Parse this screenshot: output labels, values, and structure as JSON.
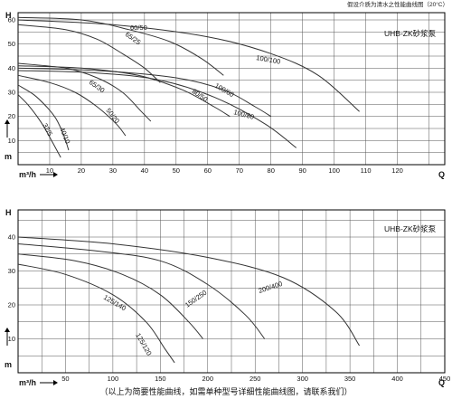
{
  "header_note": "假设介质为清水之性能曲线图（20°C）",
  "footnote": "（以上为简要性能曲线，如需单种型号详细性能曲线图，请联系我们）",
  "chart_data": [
    {
      "type": "line",
      "box_label": "UHB-ZK砂浆泵",
      "ylabel": "H",
      "yunit": "m",
      "xunit": "m³/h",
      "xlabel": "Q",
      "xlim": [
        0,
        135
      ],
      "ylim": [
        0,
        63
      ],
      "x_ticks": [
        10,
        20,
        30,
        40,
        50,
        60,
        70,
        80,
        90,
        100,
        110,
        120
      ],
      "y_ticks": [
        10,
        20,
        30,
        40,
        50,
        60
      ],
      "series": [
        {
          "name": "32/5",
          "x": [
            0,
            3,
            6,
            8.5,
            11,
            13.5
          ],
          "y": [
            29,
            25,
            20,
            15,
            9,
            3
          ]
        },
        {
          "name": "40/10",
          "x": [
            0,
            5,
            9,
            12,
            14.5,
            16
          ],
          "y": [
            33,
            29,
            24,
            19,
            12,
            6
          ]
        },
        {
          "name": "50/20",
          "x": [
            0,
            10,
            18,
            25,
            31,
            34
          ],
          "y": [
            37,
            34,
            30,
            24,
            17,
            12
          ]
        },
        {
          "name": "65/30",
          "x": [
            0,
            15,
            25,
            33,
            39,
            42
          ],
          "y": [
            42,
            40,
            36,
            30,
            22,
            18
          ]
        },
        {
          "name": "65/25",
          "x": [
            0,
            15,
            25,
            33,
            40,
            45
          ],
          "y": [
            58,
            56,
            52,
            46,
            40,
            34
          ]
        },
        {
          "name": "60/50",
          "x": [
            0,
            20,
            35,
            48,
            58,
            65
          ],
          "y": [
            61,
            60,
            56,
            51,
            44,
            37
          ]
        },
        {
          "name": "80/50",
          "x": [
            0,
            20,
            38,
            52,
            62,
            67
          ],
          "y": [
            41,
            40,
            37,
            31,
            24,
            20
          ]
        },
        {
          "name": "100/80",
          "x": [
            0,
            25,
            45,
            62,
            78,
            88
          ],
          "y": [
            39,
            38,
            35,
            28,
            17,
            7
          ]
        },
        {
          "name": "100/60",
          "x": [
            0,
            25,
            50,
            65,
            75,
            80
          ],
          "y": [
            40,
            39,
            36,
            31,
            24,
            20
          ]
        },
        {
          "name": "100/100",
          "x": [
            0,
            30,
            60,
            80,
            95,
            108
          ],
          "y": [
            60,
            58,
            53,
            46,
            37,
            22
          ]
        }
      ]
    },
    {
      "type": "line",
      "box_label": "UHB-ZK砂浆泵",
      "ylabel": "H",
      "yunit": "m",
      "xunit": "m³/h",
      "xlabel": "Q",
      "xlim": [
        0,
        450
      ],
      "ylim": [
        0,
        48
      ],
      "x_ticks": [
        50,
        100,
        150,
        200,
        250,
        300,
        350,
        400,
        450
      ],
      "y_ticks": [
        10,
        20,
        30,
        40
      ],
      "series": [
        {
          "name": "125/120",
          "x": [
            0,
            50,
            100,
            135,
            155,
            165
          ],
          "y": [
            32,
            29,
            23,
            15,
            7,
            3
          ]
        },
        {
          "name": "125/140",
          "x": [
            0,
            60,
            110,
            150,
            180,
            195
          ],
          "y": [
            35,
            33,
            29,
            23,
            15,
            10
          ]
        },
        {
          "name": "150/250",
          "x": [
            0,
            80,
            150,
            200,
            240,
            260
          ],
          "y": [
            38,
            36,
            33,
            26,
            17,
            10
          ]
        },
        {
          "name": "200/400",
          "x": [
            0,
            100,
            200,
            280,
            335,
            360
          ],
          "y": [
            40,
            38,
            34,
            28,
            18,
            8
          ]
        }
      ]
    }
  ]
}
